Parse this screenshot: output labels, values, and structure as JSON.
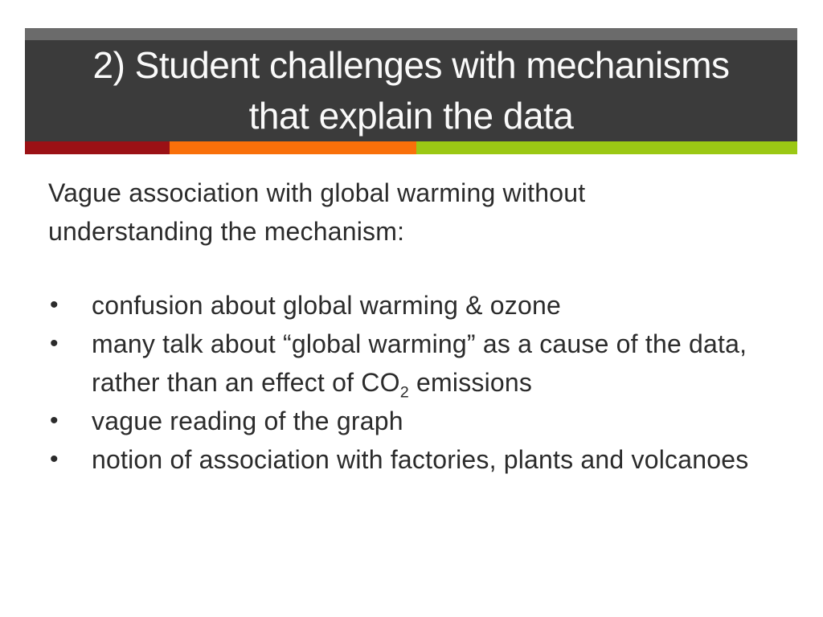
{
  "colors": {
    "page_background": "#FFFFFF",
    "header_strip": "#6B6B6B",
    "header_background": "#3B3B3B",
    "title_text": "#FAFAFA",
    "accent_red": "#9B1115",
    "accent_orange": "#F9700A",
    "accent_green": "#9BC814",
    "body_text": "#2B2B2B"
  },
  "title": {
    "lines": [
      "2) Student challenges with mechanisms",
      "that explain the data"
    ]
  },
  "body": {
    "intro": "Vague association with global warming without understanding the mechanism:",
    "bullet_char": "•",
    "bullets": [
      {
        "text": "confusion about global warming & ozone"
      },
      {
        "parts": [
          "many talk about “global warming” as a cause of the data, rather than an effect of CO",
          "2",
          " emissions"
        ]
      },
      {
        "text": "vague reading of the graph"
      },
      {
        "text": "notion of association with factories, plants and volcanoes"
      }
    ]
  }
}
